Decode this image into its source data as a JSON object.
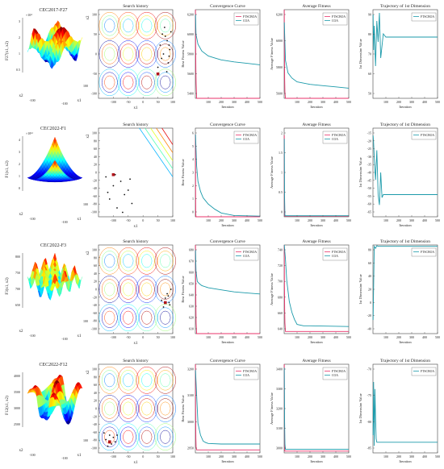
{
  "figure": {
    "legend_labels": [
      "FTSCBOA",
      "COA"
    ],
    "colors": {
      "ftscboa": "#e8336b",
      "coa": "#1b9aaa",
      "axis": "#444444",
      "marker": "#111111",
      "best_marker": "#b0161c"
    },
    "panel_titles": [
      "Search history",
      "Convergence Curve",
      "Average Fitness",
      "Trajectory of 1st Dimension"
    ],
    "landscape_titles": [
      "CEC2017-F27",
      "CEC2022-F1",
      "CEC2022-F3",
      "CEC2022-F12"
    ],
    "landscape_zlabels": [
      "F27(x1, x2)",
      "F1(x1, x2)",
      "F3(x1, x2)",
      "F12(x1, x2)"
    ],
    "axis_labels": {
      "x1": "x1",
      "x2": "x2",
      "iteration": "Iteration",
      "best": "Best Fitness Value",
      "avg": "Average Fitness Value",
      "dim": "1st Dimension Value"
    }
  },
  "chart_data": [
    {
      "row": 0,
      "function": "CEC2017-F27",
      "landscape": {
        "type": "surface",
        "zticks": [
          "3",
          "2",
          "1",
          "0.5"
        ],
        "zscale": "×10⁴",
        "xticks": [
          "-100",
          "0",
          "100"
        ]
      },
      "search": {
        "type": "scatter",
        "xlim": [
          -100,
          100
        ],
        "ylim": [
          -100,
          100
        ],
        "xticks": [
          "-100",
          "-50",
          "0",
          "50",
          "100"
        ],
        "yticks": [
          "100",
          "50",
          "0",
          "-50",
          "-100"
        ],
        "points": [
          [
            80,
            40
          ],
          [
            85,
            30
          ],
          [
            90,
            20
          ],
          [
            70,
            -10
          ],
          [
            75,
            0
          ],
          [
            88,
            -20
          ],
          [
            92,
            10
          ],
          [
            60,
            -30
          ],
          [
            95,
            50
          ],
          [
            78,
            60
          ],
          [
            84,
            -40
          ],
          [
            66,
            20
          ],
          [
            90,
            -5
          ],
          [
            72,
            45
          ]
        ],
        "best": [
          60,
          -45
        ]
      },
      "convergence": {
        "type": "line",
        "xlim": [
          0,
          500
        ],
        "ylim": [
          5300,
          6200
        ],
        "xticks": [
          "100",
          "200",
          "300",
          "400",
          "500"
        ],
        "yticks": [
          "6200",
          "6000",
          "5800",
          "5600",
          "5400"
        ],
        "series": [
          {
            "name": "FTSCBOA",
            "x": [
              1,
              2,
              4,
              6,
              10,
              500
            ],
            "y": [
              6200,
              5900,
              5600,
              5450,
              5300,
              5300
            ]
          },
          {
            "name": "COA",
            "x": [
              1,
              5,
              20,
              50,
              100,
              150,
              200,
              300,
              400,
              500
            ],
            "y": [
              6150,
              5950,
              5850,
              5780,
              5730,
              5710,
              5690,
              5670,
              5655,
              5640
            ]
          }
        ]
      },
      "average": {
        "type": "line",
        "xlim": [
          0,
          500
        ],
        "ylim": [
          5500,
          6200
        ],
        "xticks": [
          "100",
          "200",
          "300",
          "400",
          "500"
        ],
        "yticks": [
          "6200",
          "6000",
          "5800",
          "5600"
        ],
        "series": [
          {
            "name": "FTSCBOA",
            "x": [
              1,
              2,
              4,
              6,
              10,
              500
            ],
            "y": [
              6200,
              5900,
              5650,
              5550,
              5500,
              5500
            ]
          },
          {
            "name": "COA",
            "x": [
              1,
              10,
              30,
              60,
              100,
              200,
              300,
              400,
              500
            ],
            "y": [
              6100,
              5800,
              5700,
              5660,
              5630,
              5610,
              5600,
              5590,
              5580
            ]
          }
        ]
      },
      "trajectory": {
        "type": "line",
        "xlim": [
          0,
          500
        ],
        "ylim": [
          40,
          95
        ],
        "xticks": [
          "100",
          "200",
          "300",
          "400",
          "500"
        ],
        "yticks": [
          "90",
          "80",
          "70",
          "60",
          "50"
        ],
        "series": [
          {
            "name": "FTSCBOA",
            "x": [
              1,
              5,
              10,
              20,
              30,
              40,
              50,
              60,
              80,
              100,
              500
            ],
            "y": [
              92,
              70,
              85,
              60,
              88,
              75,
              93,
              65,
              80,
              78,
              78
            ]
          }
        ]
      }
    },
    {
      "row": 1,
      "function": "CEC2022-F1",
      "landscape": {
        "type": "surface",
        "zticks": [
          "4",
          "3",
          "2",
          "1",
          "0"
        ],
        "zscale": "×10¹²",
        "xticks": [
          "-100",
          "0",
          "100"
        ]
      },
      "search": {
        "type": "scatter",
        "xlim": [
          -100,
          100
        ],
        "ylim": [
          -100,
          100
        ],
        "xticks": [
          "-100",
          "-50",
          "0",
          "50",
          "100"
        ],
        "yticks": [
          "100",
          "80",
          "60",
          "40",
          "20",
          "0",
          "-20",
          "-40",
          "-60",
          "-80",
          "-100"
        ],
        "points": [
          [
            -80,
            -10
          ],
          [
            -60,
            -30
          ],
          [
            -40,
            -20
          ],
          [
            -70,
            -60
          ],
          [
            -50,
            -80
          ],
          [
            -30,
            -50
          ],
          [
            -20,
            -40
          ],
          [
            -10,
            -70
          ],
          [
            -55,
            -5
          ],
          [
            -35,
            -90
          ],
          [
            -75,
            -45
          ],
          [
            -15,
            -15
          ]
        ],
        "best": [
          -60,
          -5
        ]
      },
      "convergence": {
        "type": "line",
        "xlim": [
          0,
          500
        ],
        "ylim": [
          0,
          7
        ],
        "xticks": [
          "100",
          "200",
          "300",
          "400",
          "500"
        ],
        "yticks": [
          "6",
          "5",
          "4",
          "3",
          "2",
          "1",
          "0"
        ],
        "series": [
          {
            "name": "FTSCBOA",
            "x": [
              1,
              2,
              3,
              5,
              500
            ],
            "y": [
              6.5,
              2,
              0.3,
              0,
              0
            ]
          },
          {
            "name": "COA",
            "x": [
              1,
              10,
              20,
              40,
              60,
              100,
              150,
              200,
              300,
              500
            ],
            "y": [
              6.5,
              4,
              2.8,
              2,
              1.5,
              1,
              0.6,
              0.3,
              0.1,
              0.05
            ]
          }
        ]
      },
      "average": {
        "type": "line",
        "xlim": [
          0,
          500
        ],
        "ylim": [
          0,
          2.5
        ],
        "xticks": [
          "100",
          "200",
          "300",
          "400",
          "500"
        ],
        "yticks": [
          "2",
          "1.5",
          "1",
          "0.5",
          "0"
        ],
        "series": [
          {
            "name": "FTSCBOA",
            "x": [
              1,
              2,
              3,
              500
            ],
            "y": [
              2.3,
              0.5,
              0.02,
              0.02
            ]
          },
          {
            "name": "COA",
            "x": [
              1,
              3,
              6,
              500
            ],
            "y": [
              2.2,
              0.6,
              0.03,
              0.03
            ]
          }
        ]
      },
      "trajectory": {
        "type": "line",
        "xlim": [
          0,
          500
        ],
        "ylim": [
          -70,
          -10
        ],
        "xticks": [
          "100",
          "200",
          "300",
          "400",
          "500"
        ],
        "yticks": [
          "-15",
          "-20",
          "-25",
          "-30",
          "-35",
          "-40",
          "-45",
          "-50",
          "-55",
          "-60",
          "-65"
        ],
        "series": [
          {
            "name": "FTSCBOA",
            "x": [
              1,
              5,
              10,
              20,
              30,
              40,
              50,
              60,
              70,
              80,
              500
            ],
            "y": [
              -15,
              -20,
              -30,
              -45,
              -25,
              -55,
              -62,
              -40,
              -57,
              -55,
              -55
            ]
          }
        ]
      }
    },
    {
      "row": 2,
      "function": "CEC2022-F3",
      "landscape": {
        "type": "surface",
        "zticks": [
          "800",
          "750",
          "700",
          "650"
        ],
        "zscale": "",
        "xticks": [
          "-100",
          "0",
          "100"
        ]
      },
      "search": {
        "type": "scatter",
        "xlim": [
          -100,
          100
        ],
        "ylim": [
          -100,
          100
        ],
        "xticks": [
          "-100",
          "-50",
          "0",
          "50",
          "100"
        ],
        "yticks": [
          "100",
          "80",
          "60",
          "40",
          "20",
          "0",
          "-20",
          "-40",
          "-60",
          "-80",
          "-100"
        ],
        "points": [
          [
            80,
            -20
          ],
          [
            85,
            -10
          ],
          [
            90,
            -30
          ],
          [
            75,
            -40
          ],
          [
            95,
            0
          ],
          [
            70,
            -25
          ],
          [
            88,
            -15
          ],
          [
            92,
            -35
          ]
        ],
        "best": [
          80,
          -30
        ]
      },
      "convergence": {
        "type": "line",
        "xlim": [
          0,
          500
        ],
        "ylim": [
          600,
          685
        ],
        "xticks": [
          "100",
          "200",
          "300",
          "400",
          "500"
        ],
        "yticks": [
          "680",
          "670",
          "660",
          "650",
          "640",
          "630",
          "620",
          "610"
        ],
        "series": [
          {
            "name": "FTSCBOA",
            "x": [
              1,
              2,
              4,
              6,
              10,
              500
            ],
            "y": [
              685,
              660,
              630,
              610,
              600,
              600
            ]
          },
          {
            "name": "COA",
            "x": [
              1,
              5,
              15,
              30,
              50,
              100,
              200,
              300,
              400,
              500
            ],
            "y": [
              680,
              660,
              650,
              648,
              646,
              644,
              642,
              640,
              639,
              638
            ]
          }
        ]
      },
      "average": {
        "type": "line",
        "xlim": [
          0,
          500
        ],
        "ylim": [
          615,
          740
        ],
        "xticks": [
          "100",
          "200",
          "300",
          "400",
          "500"
        ],
        "yticks": [
          "740",
          "720",
          "700",
          "680",
          "660",
          "640"
        ],
        "series": [
          {
            "name": "FTSCBOA",
            "x": [
              1,
              2,
              4,
              6,
              10,
              500
            ],
            "y": [
              740,
              690,
              650,
              630,
              618,
              618
            ]
          },
          {
            "name": "COA",
            "x": [
              1,
              10,
              20,
              40,
              60,
              80,
              100,
              150,
              200,
              500
            ],
            "y": [
              740,
              720,
              690,
              660,
              645,
              635,
              628,
              626,
              626,
              625
            ]
          }
        ]
      },
      "trajectory": {
        "type": "line",
        "xlim": [
          0,
          500
        ],
        "ylim": [
          -50,
          80
        ],
        "xticks": [
          "100",
          "200",
          "300",
          "400",
          "500"
        ],
        "yticks": [
          "80",
          "60",
          "40",
          "20",
          "0",
          "-20",
          "-40"
        ],
        "series": [
          {
            "name": "FTSCBOA",
            "x": [
              1,
              10,
              20,
              30,
              40,
              500
            ],
            "y": [
              -30,
              78,
              75,
              79,
              78,
              78
            ]
          }
        ]
      }
    },
    {
      "row": 3,
      "function": "CEC2022-F12",
      "landscape": {
        "type": "surface",
        "zticks": [
          "4000",
          "3500",
          "3000",
          "2500"
        ],
        "zscale": "",
        "xticks": [
          "-100",
          "0",
          "100"
        ]
      },
      "search": {
        "type": "scatter",
        "xlim": [
          -100,
          100
        ],
        "ylim": [
          -100,
          100
        ],
        "xticks": [
          "-100",
          "-50",
          "0",
          "50",
          "100"
        ],
        "yticks": [
          "100",
          "80",
          "60",
          "40",
          "20",
          "0",
          "-20",
          "-40",
          "-60",
          "-80",
          "-100"
        ],
        "points": [
          [
            -80,
            -70
          ],
          [
            -70,
            -60
          ],
          [
            -60,
            -65
          ],
          [
            -75,
            -85
          ],
          [
            -55,
            -75
          ],
          [
            -85,
            -55
          ],
          [
            -65,
            -80
          ],
          [
            -50,
            -60
          ]
        ],
        "best": [
          -70,
          -75
        ]
      },
      "convergence": {
        "type": "line",
        "xlim": [
          0,
          500
        ],
        "ylim": [
          2900,
          3200
        ],
        "xticks": [
          "100",
          "200",
          "300",
          "400",
          "500"
        ],
        "yticks": [
          "3200",
          "3100",
          "3000",
          "2950"
        ],
        "series": [
          {
            "name": "FTSCBOA",
            "x": [
              1,
              2,
              4,
              6,
              10,
              500
            ],
            "y": [
              3200,
              3050,
              2950,
              2920,
              2910,
              2910
            ]
          },
          {
            "name": "COA",
            "x": [
              1,
              20,
              40,
              60,
              80,
              100,
              200,
              500
            ],
            "y": [
              3180,
              3000,
              2960,
              2940,
              2935,
              2932,
              2930,
              2930
            ]
          }
        ]
      },
      "average": {
        "type": "line",
        "xlim": [
          0,
          500
        ],
        "ylim": [
          2900,
          3400
        ],
        "xticks": [
          "100",
          "200",
          "300",
          "400",
          "500"
        ],
        "yticks": [
          "3400",
          "3300",
          "3200",
          "3100",
          "3000"
        ],
        "series": [
          {
            "name": "FTSCBOA",
            "x": [
              1,
              2,
              3,
              5,
              500
            ],
            "y": [
              3400,
              3200,
              3000,
              2910,
              2910
            ]
          },
          {
            "name": "COA",
            "x": [
              1,
              3,
              6,
              10,
              500
            ],
            "y": [
              3380,
              3100,
              2950,
              2920,
              2920
            ]
          }
        ]
      },
      "trajectory": {
        "type": "line",
        "xlim": [
          0,
          500
        ],
        "ylim": [
          -90,
          -65
        ],
        "xticks": [
          "100",
          "200",
          "300",
          "400",
          "500"
        ],
        "yticks": [
          "-70",
          "-75",
          "-80",
          "-85"
        ],
        "series": [
          {
            "name": "FTSCBOA",
            "x": [
              1,
              5,
              10,
              15,
              20,
              25,
              30,
              500
            ],
            "y": [
              -85,
              -70,
              -88,
              -72,
              -80,
              -86,
              -87,
              -87
            ]
          }
        ]
      }
    }
  ]
}
